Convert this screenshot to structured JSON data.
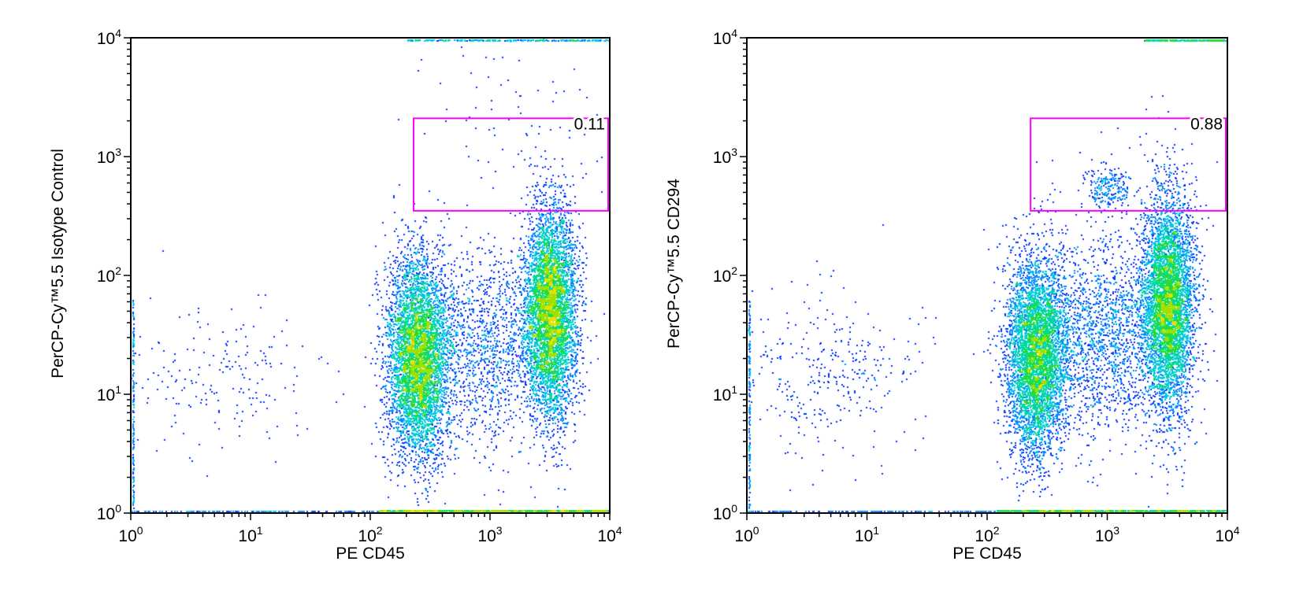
{
  "chart_data": [
    {
      "type": "scatter",
      "subtype": "flow-cytometry-density-dot-plot",
      "title": "",
      "xlabel": "PE CD45",
      "ylabel": "PerCP-Cy™5.5 Isotype Control",
      "xscale": "log",
      "yscale": "log",
      "xlim": [
        1,
        10000
      ],
      "ylim": [
        1,
        10000
      ],
      "x_ticks": [
        {
          "base": "10",
          "exp": "0"
        },
        {
          "base": "10",
          "exp": "1"
        },
        {
          "base": "10",
          "exp": "2"
        },
        {
          "base": "10",
          "exp": "3"
        },
        {
          "base": "10",
          "exp": "4"
        }
      ],
      "y_ticks": [
        {
          "base": "10",
          "exp": "0"
        },
        {
          "base": "10",
          "exp": "1"
        },
        {
          "base": "10",
          "exp": "2"
        },
        {
          "base": "10",
          "exp": "3"
        },
        {
          "base": "10",
          "exp": "4"
        }
      ],
      "gate": {
        "x_range": [
          230,
          10000
        ],
        "y_range": [
          350,
          2100
        ],
        "label": "0.11",
        "percent": 0.11
      },
      "populations": [
        {
          "name": "cluster-cd45-low",
          "center_x": 250,
          "center_y": 20,
          "spread_logx": 0.13,
          "spread_logy": 0.42,
          "count": 5000
        },
        {
          "name": "cluster-cd45-high",
          "center_x": 3200,
          "center_y": 50,
          "spread_logx": 0.11,
          "spread_logy": 0.45,
          "count": 5000
        },
        {
          "name": "bridge-cd45-mid",
          "center_x": 900,
          "center_y": 25,
          "spread_logx": 0.28,
          "spread_logy": 0.4,
          "count": 1400
        },
        {
          "name": "debris-low",
          "center_x": 5,
          "center_y": 15,
          "spread_logx": 0.45,
          "spread_logy": 0.3,
          "count": 200
        },
        {
          "name": "gate-events",
          "center_x": 1500,
          "center_y": 800,
          "spread_logx": 0.45,
          "spread_logy": 0.25,
          "count": 30
        },
        {
          "name": "top-scatter",
          "center_x": 1200,
          "center_y": 4000,
          "spread_logx": 0.35,
          "spread_logy": 0.25,
          "count": 45
        }
      ],
      "edge_events": {
        "bottom_axis_from_x": 120,
        "top_axis_from_x": 200,
        "left_axis": true
      }
    },
    {
      "type": "scatter",
      "subtype": "flow-cytometry-density-dot-plot",
      "title": "",
      "xlabel": "PE CD45",
      "ylabel": "PerCP-Cy™5.5 CD294",
      "xscale": "log",
      "yscale": "log",
      "xlim": [
        1,
        10000
      ],
      "ylim": [
        1,
        10000
      ],
      "x_ticks": [
        {
          "base": "10",
          "exp": "0"
        },
        {
          "base": "10",
          "exp": "1"
        },
        {
          "base": "10",
          "exp": "2"
        },
        {
          "base": "10",
          "exp": "3"
        },
        {
          "base": "10",
          "exp": "4"
        }
      ],
      "y_ticks": [
        {
          "base": "10",
          "exp": "0"
        },
        {
          "base": "10",
          "exp": "1"
        },
        {
          "base": "10",
          "exp": "2"
        },
        {
          "base": "10",
          "exp": "3"
        },
        {
          "base": "10",
          "exp": "4"
        }
      ],
      "gate": {
        "x_range": [
          230,
          10000
        ],
        "y_range": [
          350,
          2100
        ],
        "label": "0.88",
        "percent": 0.88
      },
      "populations": [
        {
          "name": "cluster-cd45-low",
          "center_x": 260,
          "center_y": 22,
          "spread_logx": 0.13,
          "spread_logy": 0.42,
          "count": 5000
        },
        {
          "name": "cluster-cd45-high",
          "center_x": 3200,
          "center_y": 55,
          "spread_logx": 0.11,
          "spread_logy": 0.45,
          "count": 5000
        },
        {
          "name": "bridge-cd45-mid",
          "center_x": 1000,
          "center_y": 30,
          "spread_logx": 0.25,
          "spread_logy": 0.4,
          "count": 1600
        },
        {
          "name": "cd294-positive-cluster",
          "center_x": 1050,
          "center_y": 550,
          "spread_logx": 0.09,
          "spread_logy": 0.09,
          "count": 220
        },
        {
          "name": "debris-low",
          "center_x": 5,
          "center_y": 15,
          "spread_logx": 0.4,
          "spread_logy": 0.32,
          "count": 350
        },
        {
          "name": "gate-events",
          "center_x": 2000,
          "center_y": 700,
          "spread_logx": 0.35,
          "spread_logy": 0.22,
          "count": 40
        }
      ],
      "edge_events": {
        "bottom_axis_from_x": 120,
        "top_axis_from_x": 2000,
        "left_axis": true
      }
    }
  ],
  "colors": {
    "density_scale": [
      "#0000ff",
      "#0033ff",
      "#0088ff",
      "#00c8e0",
      "#00d8a0",
      "#20dc40",
      "#a0e000",
      "#e8e000"
    ],
    "gate": "#ff00ff",
    "frame": "#000000"
  }
}
